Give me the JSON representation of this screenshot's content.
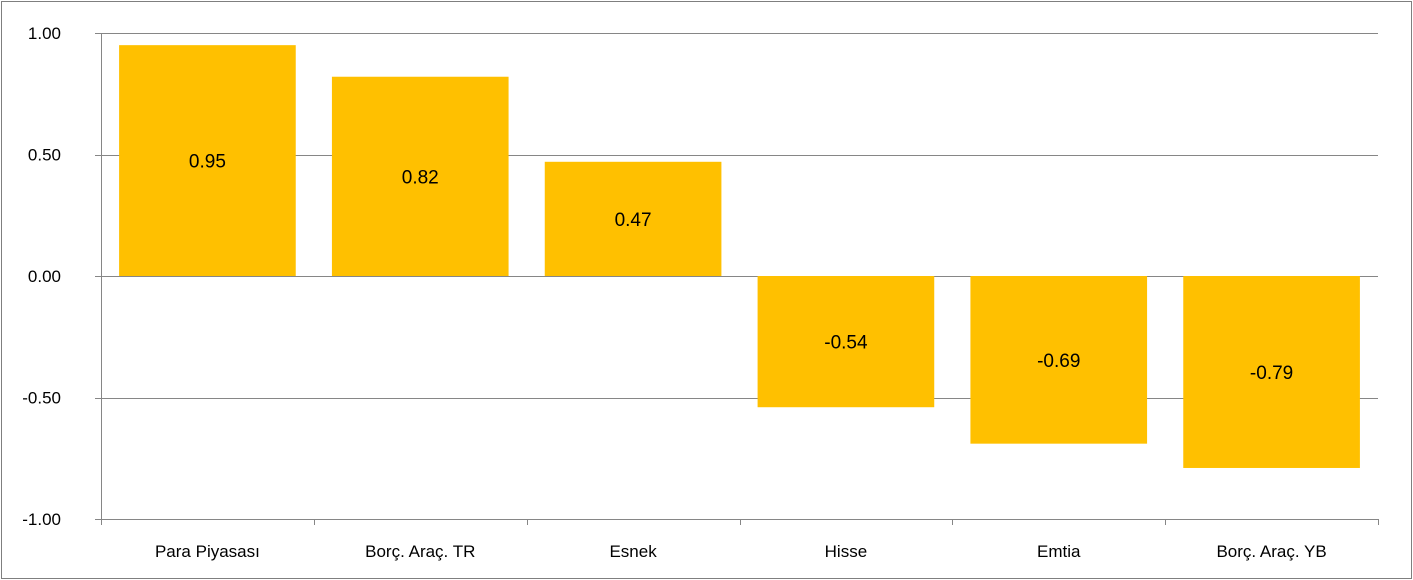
{
  "chart_data": {
    "type": "bar",
    "categories": [
      "Para Piyasası",
      "Borç. Araç. TR",
      "Esnek",
      "Hisse",
      "Emtia",
      "Borç. Araç. YB"
    ],
    "values": [
      0.95,
      0.82,
      0.47,
      -0.54,
      -0.69,
      -0.79
    ],
    "value_labels": [
      "0.95",
      "0.82",
      "0.47",
      "-0.54",
      "-0.69",
      "-0.79"
    ],
    "yticks": [
      1.0,
      0.5,
      0.0,
      -0.5,
      -1.0
    ],
    "ytick_labels": [
      "1.00",
      "0.50",
      "0.00",
      "-0.50",
      "-1.00"
    ],
    "ylim": [
      -1.0,
      1.0
    ],
    "title": "",
    "xlabel": "",
    "ylabel": "",
    "grid": "horizontal",
    "legend": "none",
    "bar_color": "#FFC000",
    "gridline_color": "#868686"
  }
}
